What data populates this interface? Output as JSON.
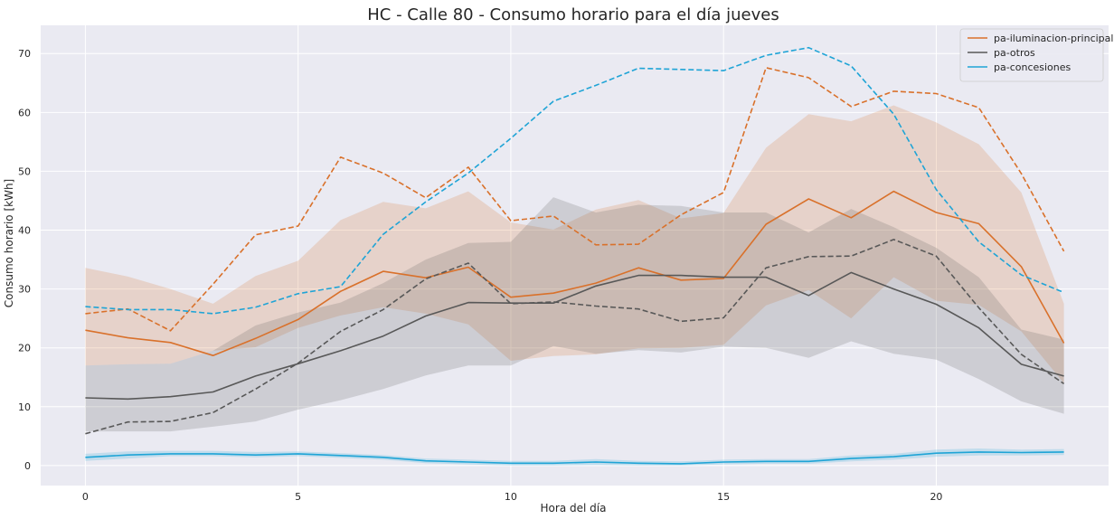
{
  "chart_data": {
    "type": "line",
    "title": "HC - Calle 80 - Consumo horario para el día jueves",
    "xlabel": "Hora del día",
    "ylabel": "Consumo horario [kWh]",
    "xlim": [
      -1.05,
      24.05
    ],
    "ylim": [
      -3.4,
      74.8
    ],
    "x_ticks": [
      0,
      5,
      10,
      15,
      20
    ],
    "y_ticks": [
      0,
      10,
      20,
      30,
      40,
      50,
      60,
      70
    ],
    "grid": true,
    "legend_position": "top-right",
    "x": [
      0,
      1,
      2,
      3,
      4,
      5,
      6,
      7,
      8,
      9,
      10,
      11,
      12,
      13,
      14,
      15,
      16,
      17,
      18,
      19,
      20,
      21,
      22,
      23
    ],
    "series": [
      {
        "name": "pa-iluminacion-principal",
        "color": "#d9712b",
        "mean": [
          23.0,
          21.7,
          20.9,
          18.7,
          21.6,
          24.8,
          29.6,
          33.0,
          31.9,
          33.7,
          28.6,
          29.3,
          31.0,
          33.6,
          31.5,
          31.8,
          41.0,
          45.3,
          42.1,
          46.6,
          43.0,
          41.1,
          33.8,
          20.8
        ],
        "band_low": [
          17.0,
          17.2,
          17.3,
          19.5,
          20.1,
          23.4,
          25.5,
          26.9,
          25.8,
          24.0,
          17.8,
          18.6,
          18.9,
          19.9,
          20.0,
          20.5,
          27.2,
          29.8,
          25.0,
          32.0,
          28.0,
          27.3,
          22.8,
          14.0
        ],
        "band_high": [
          33.6,
          32.1,
          30.0,
          27.5,
          32.2,
          34.8,
          41.7,
          44.8,
          43.7,
          46.6,
          41.3,
          40.1,
          43.5,
          45.1,
          42.0,
          42.9,
          54.0,
          59.7,
          58.5,
          61.2,
          58.3,
          54.6,
          46.4,
          27.5
        ],
        "dashed": [
          25.8,
          26.6,
          22.9,
          30.8,
          39.2,
          40.7,
          52.4,
          49.7,
          45.5,
          50.7,
          41.6,
          42.4,
          37.5,
          37.6,
          42.6,
          46.4,
          67.6,
          65.9,
          61.0,
          63.6,
          63.2,
          60.8,
          49.6,
          36.4
        ]
      },
      {
        "name": "pa-otros",
        "color": "#585858",
        "mean": [
          11.5,
          11.3,
          11.7,
          12.5,
          15.2,
          17.3,
          19.5,
          22.0,
          25.4,
          27.7,
          27.6,
          27.6,
          30.5,
          32.3,
          32.3,
          32.0,
          32.0,
          28.9,
          32.8,
          30.0,
          27.4,
          23.4,
          17.2,
          15.2
        ],
        "band_low": [
          5.8,
          5.8,
          5.8,
          6.6,
          7.5,
          9.5,
          11.1,
          13.0,
          15.3,
          17.0,
          17.0,
          20.3,
          19.0,
          19.6,
          19.2,
          20.2,
          20.0,
          18.3,
          21.1,
          19.0,
          18.0,
          14.7,
          10.9,
          8.8
        ],
        "band_high": [
          17.0,
          17.2,
          17.3,
          19.5,
          23.8,
          26.0,
          27.7,
          31.0,
          35.0,
          37.8,
          38.0,
          45.6,
          43.0,
          44.3,
          44.1,
          43.0,
          43.0,
          39.6,
          43.6,
          40.5,
          37.0,
          32.0,
          23.1,
          21.4
        ],
        "dashed": [
          5.4,
          7.4,
          7.5,
          9.0,
          13.0,
          17.4,
          22.8,
          26.5,
          31.7,
          34.4,
          27.5,
          27.8,
          27.1,
          26.6,
          24.5,
          25.1,
          33.6,
          35.5,
          35.6,
          38.4,
          35.6,
          26.8,
          18.9,
          13.9
        ]
      },
      {
        "name": "pa-concesiones",
        "color": "#1fa4d6",
        "mean": [
          1.4,
          1.8,
          2.0,
          2.0,
          1.8,
          2.0,
          1.7,
          1.4,
          0.8,
          0.6,
          0.4,
          0.4,
          0.6,
          0.4,
          0.3,
          0.6,
          0.7,
          0.7,
          1.2,
          1.5,
          2.1,
          2.3,
          2.2,
          2.3
        ],
        "band_low": [
          0.8,
          1.2,
          1.6,
          1.6,
          1.4,
          1.6,
          1.3,
          1.0,
          0.4,
          0.2,
          0.0,
          0.0,
          0.1,
          0.0,
          0.0,
          0.2,
          0.3,
          0.3,
          0.7,
          1.0,
          1.5,
          1.7,
          1.7,
          1.8
        ],
        "band_high": [
          2.0,
          2.4,
          2.5,
          2.5,
          2.3,
          2.4,
          2.1,
          1.8,
          1.2,
          1.0,
          0.8,
          0.8,
          1.1,
          0.8,
          0.7,
          1.0,
          1.1,
          1.1,
          1.7,
          2.0,
          2.7,
          2.9,
          2.7,
          2.8
        ],
        "dashed": [
          27.0,
          26.5,
          26.5,
          25.8,
          26.9,
          29.2,
          30.4,
          39.3,
          44.8,
          49.7,
          55.6,
          61.9,
          64.6,
          67.5,
          67.3,
          67.1,
          69.7,
          71.0,
          67.9,
          59.7,
          46.9,
          38.0,
          32.4,
          29.4
        ]
      }
    ]
  }
}
